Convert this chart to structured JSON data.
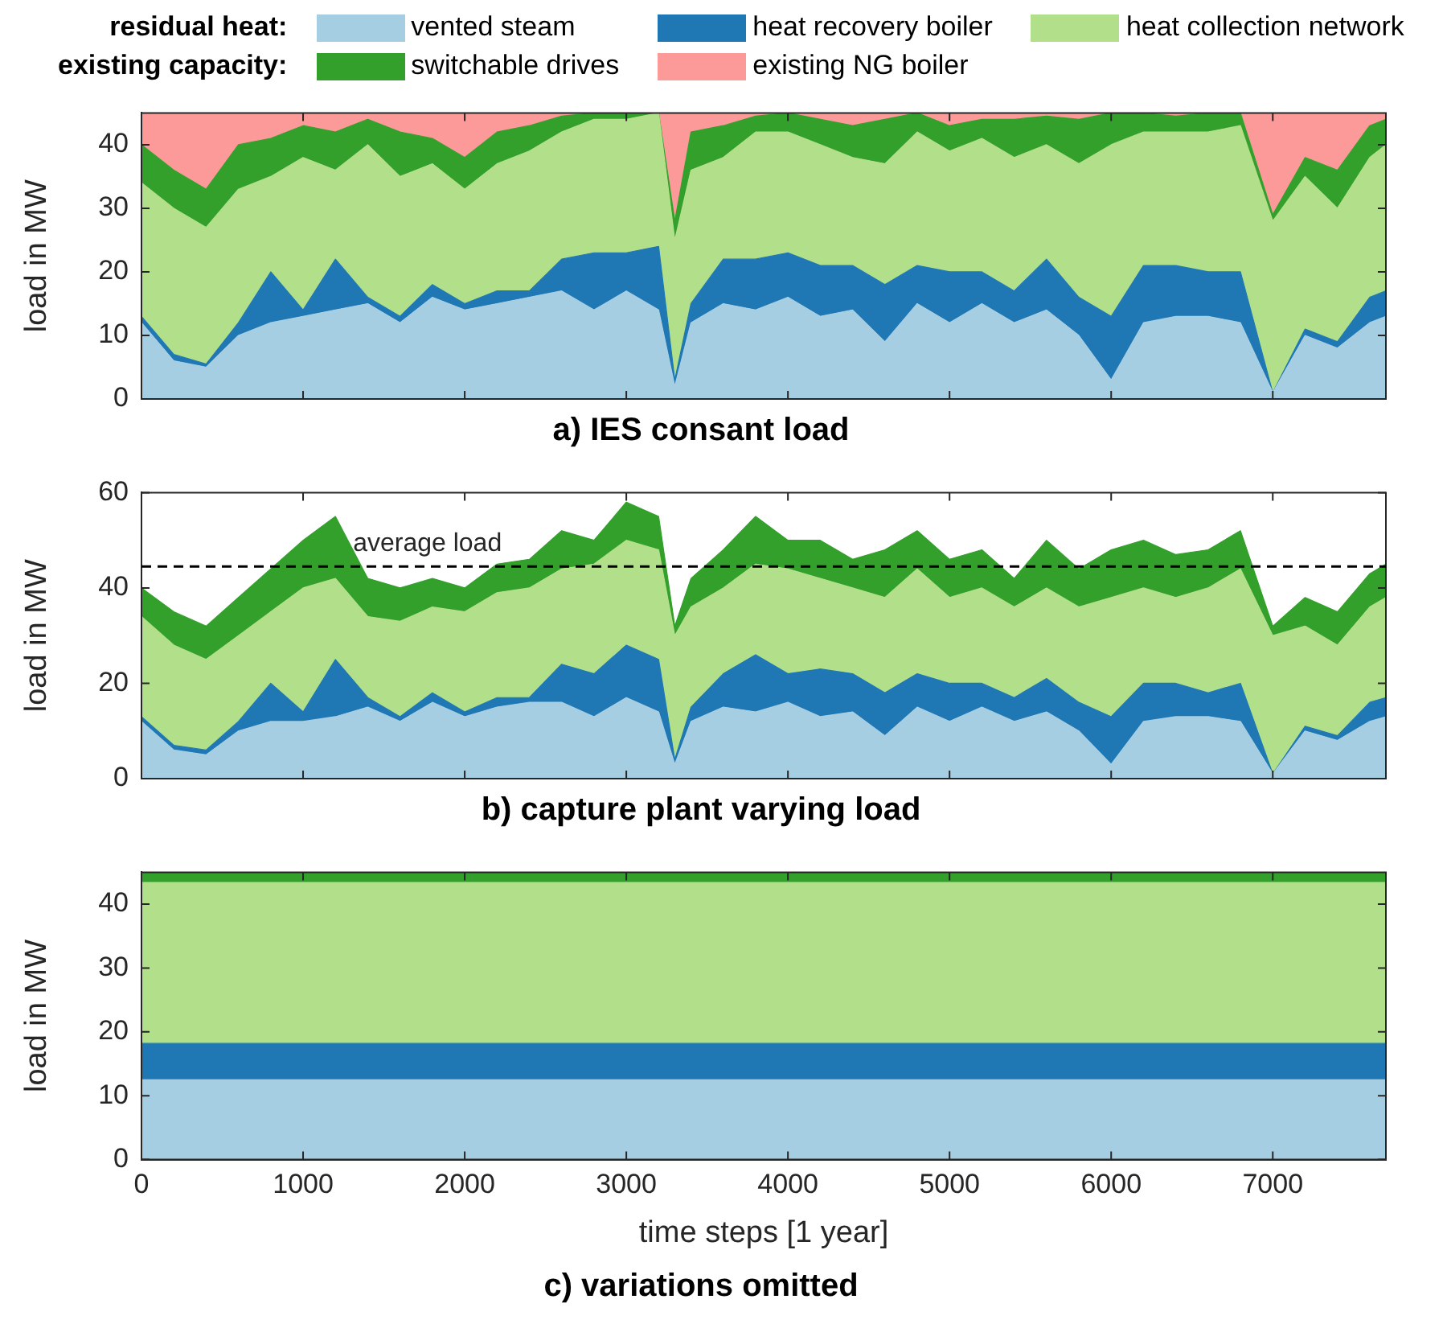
{
  "chart_data": [
    {
      "type": "area",
      "title": "a) IES consant load",
      "ylabel": "load in MW",
      "legend_title": "residual heat:",
      "annotations": [
        "existing capacity:"
      ],
      "legend": "top",
      "stacked": true,
      "tick_labels": "y",
      "xlim": [
        0,
        7700
      ],
      "xticks": [
        0,
        1000,
        2000,
        3000,
        4000,
        5000,
        6000,
        7000
      ],
      "ylim": [
        0,
        45
      ],
      "yticks": [
        0,
        10,
        20,
        30,
        40
      ],
      "x": [
        0,
        200,
        400,
        600,
        800,
        1000,
        1200,
        1400,
        1600,
        1800,
        2000,
        2200,
        2400,
        2600,
        2800,
        3000,
        3200,
        3300,
        3400,
        3600,
        3800,
        4000,
        4200,
        4400,
        4600,
        4800,
        5000,
        5200,
        5400,
        5600,
        5800,
        6000,
        6200,
        6400,
        6600,
        6800,
        7000,
        7200,
        7400,
        7600,
        7700
      ],
      "series": [
        {
          "name": "vented steam",
          "color": "#a6cee3",
          "values": [
            12,
            6,
            5,
            10,
            12,
            13,
            14,
            15,
            12,
            16,
            14,
            15,
            16,
            17,
            14,
            17,
            14,
            2,
            12,
            15,
            14,
            16,
            13,
            14,
            9,
            15,
            12,
            15,
            12,
            14,
            10,
            3,
            12,
            13,
            13,
            12,
            1,
            10,
            8,
            12,
            13
          ]
        },
        {
          "name": "heat recovery boiler",
          "color": "#1f78b4",
          "values": [
            1,
            1,
            0.5,
            2,
            8,
            1,
            8,
            1,
            1,
            2,
            1,
            2,
            1,
            5,
            9,
            6,
            10,
            1,
            3,
            7,
            8,
            7,
            8,
            7,
            9,
            6,
            8,
            5,
            5,
            8,
            6,
            10,
            9,
            8,
            7,
            8,
            0,
            1,
            1,
            4,
            4
          ]
        },
        {
          "name": "heat collection network",
          "color": "#b2df8a",
          "values": [
            21,
            23,
            21.5,
            21,
            15,
            24,
            14,
            24,
            22,
            19,
            18,
            20,
            22,
            20,
            21,
            21,
            21,
            22,
            21,
            16,
            20,
            19,
            19,
            17,
            19,
            21,
            19,
            21,
            21,
            18,
            21,
            27,
            21,
            21,
            22,
            23,
            27,
            24,
            21,
            22,
            23
          ]
        },
        {
          "name": "switchable drives",
          "color": "#33a02c",
          "values": [
            6,
            6,
            6,
            7,
            6,
            5,
            6,
            4,
            7,
            4,
            5,
            5,
            4,
            2.5,
            1,
            1,
            0,
            3,
            6,
            5,
            2.5,
            3,
            4,
            5,
            7,
            3,
            4,
            3,
            6,
            4.5,
            7,
            5,
            3,
            2.5,
            3,
            2,
            1,
            3,
            6,
            5,
            4
          ]
        },
        {
          "name": "existing NG boiler",
          "color": "#fb9a99",
          "values": [
            5,
            9,
            12,
            5,
            4,
            2,
            3,
            1,
            3,
            4,
            7,
            3,
            2,
            0.5,
            0,
            0,
            0,
            17,
            3,
            2,
            0.5,
            0,
            1,
            2,
            1,
            0,
            2,
            1,
            1,
            0.5,
            1,
            0,
            0,
            0.5,
            0,
            0,
            16,
            7,
            9,
            2,
            1
          ]
        }
      ]
    },
    {
      "type": "area",
      "title": "b) capture plant varying load",
      "ylabel": "load in MW",
      "stacked": true,
      "tick_labels": "y",
      "xlim": [
        0,
        7700
      ],
      "xticks": [
        0,
        1000,
        2000,
        3000,
        4000,
        5000,
        6000,
        7000
      ],
      "ylim": [
        0,
        60
      ],
      "yticks": [
        0,
        20,
        40,
        60
      ],
      "ref_lines": [
        {
          "axis": "y",
          "value": 44.5,
          "label": "average load",
          "color": "#000000",
          "line_style": "dashed"
        }
      ],
      "x": [
        0,
        200,
        400,
        600,
        800,
        1000,
        1200,
        1400,
        1600,
        1800,
        2000,
        2200,
        2400,
        2600,
        2800,
        3000,
        3200,
        3300,
        3400,
        3600,
        3800,
        4000,
        4200,
        4400,
        4600,
        4800,
        5000,
        5200,
        5400,
        5600,
        5800,
        6000,
        6200,
        6400,
        6600,
        6800,
        7000,
        7200,
        7400,
        7600,
        7700
      ],
      "series": [
        {
          "color": "#a6cee3",
          "values": [
            12,
            6,
            5,
            10,
            12,
            12,
            13,
            15,
            12,
            16,
            13,
            15,
            16,
            16,
            13,
            17,
            14,
            3,
            12,
            15,
            14,
            16,
            13,
            14,
            9,
            15,
            12,
            15,
            12,
            14,
            10,
            3,
            12,
            13,
            13,
            12,
            1,
            10,
            8,
            12,
            13
          ]
        },
        {
          "color": "#1f78b4",
          "values": [
            1,
            1,
            1,
            2,
            8,
            2,
            12,
            2,
            1,
            2,
            1,
            2,
            1,
            8,
            9,
            11,
            11,
            1,
            3,
            7,
            12,
            6,
            10,
            8,
            9,
            7,
            8,
            5,
            5,
            7,
            6,
            10,
            8,
            7,
            5,
            8,
            0,
            1,
            1,
            4,
            4
          ]
        },
        {
          "color": "#b2df8a",
          "values": [
            21,
            21,
            19,
            18,
            15,
            26,
            17,
            17,
            20,
            18,
            21,
            22,
            23,
            20,
            23,
            22,
            23,
            26,
            21,
            18,
            19,
            22,
            19,
            18,
            20,
            22,
            18,
            20,
            19,
            19,
            20,
            25,
            20,
            18,
            22,
            24,
            29,
            21,
            19,
            20,
            21
          ]
        },
        {
          "color": "#33a02c",
          "values": [
            6,
            7,
            7,
            8,
            9,
            10,
            13,
            8,
            7,
            6,
            5,
            6,
            6,
            8,
            5,
            8,
            7,
            2,
            6,
            8,
            10,
            6,
            8,
            6,
            10,
            8,
            8,
            8,
            6,
            10,
            8,
            10,
            10,
            9,
            8,
            8,
            2,
            6,
            7,
            7,
            7
          ]
        }
      ]
    },
    {
      "type": "area",
      "title": "c) variations omitted",
      "xlabel": "time steps [1 year]",
      "ylabel": "load in MW",
      "stacked": true,
      "xlim": [
        0,
        7700
      ],
      "xticks": [
        0,
        1000,
        2000,
        3000,
        4000,
        5000,
        6000,
        7000
      ],
      "ylim": [
        0,
        45
      ],
      "yticks": [
        0,
        10,
        20,
        30,
        40
      ],
      "x": [
        0,
        1000,
        2000,
        3000,
        4000,
        5000,
        6000,
        7000,
        7700
      ],
      "series": [
        {
          "color": "#a6cee3",
          "values": [
            12.5,
            12.5,
            12.5,
            12.5,
            12.5,
            12.5,
            12.5,
            12.5,
            12.5
          ]
        },
        {
          "color": "#1f78b4",
          "values": [
            5.7,
            5.7,
            5.7,
            5.7,
            5.7,
            5.7,
            5.7,
            5.7,
            5.7
          ]
        },
        {
          "color": "#b2df8a",
          "values": [
            25.2,
            25.2,
            25.2,
            25.2,
            25.2,
            25.2,
            25.2,
            25.2,
            25.2
          ]
        },
        {
          "color": "#33a02c",
          "values": [
            1.6,
            1.6,
            1.6,
            1.6,
            1.6,
            1.6,
            1.6,
            1.6,
            1.6
          ]
        }
      ]
    }
  ]
}
